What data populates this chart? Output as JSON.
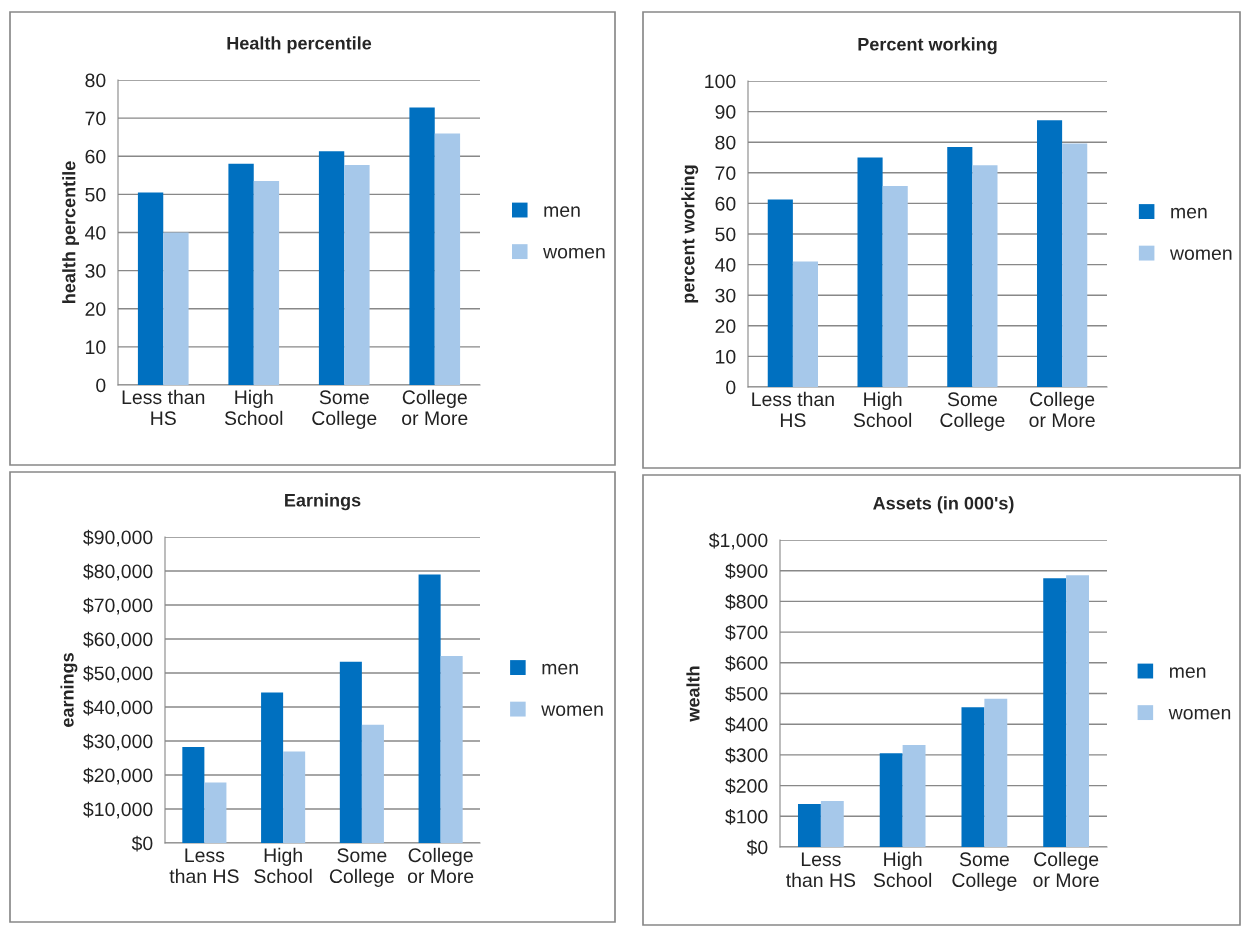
{
  "chart_data": [
    {
      "type": "bar",
      "title": "Health percentile",
      "ylabel": "health percentile",
      "categories": [
        "Less than\nHS",
        "High\nSchool",
        "Some\nCollege",
        "College\nor More"
      ],
      "series": [
        {
          "name": "men",
          "color": "#0070c0",
          "values": [
            50.5,
            58,
            61.3,
            72.8
          ]
        },
        {
          "name": "women",
          "color": "#a6c8ea",
          "values": [
            40,
            53.5,
            57.7,
            66
          ]
        }
      ],
      "ylim": [
        0,
        80
      ],
      "yticks": [
        0,
        10,
        20,
        30,
        40,
        50,
        60,
        70,
        80
      ],
      "grid": "y",
      "legend": "right"
    },
    {
      "type": "bar",
      "title": "Percent working",
      "ylabel": "percent working",
      "categories": [
        "Less than\nHS",
        "High\nSchool",
        "Some\nCollege",
        "College\nor More"
      ],
      "series": [
        {
          "name": "men",
          "color": "#0070c0",
          "values": [
            61.3,
            75,
            78.4,
            87.2
          ]
        },
        {
          "name": "women",
          "color": "#a6c8ea",
          "values": [
            41,
            65.7,
            72.5,
            79.6
          ]
        }
      ],
      "ylim": [
        0,
        100
      ],
      "yticks": [
        0,
        10,
        20,
        30,
        40,
        50,
        60,
        70,
        80,
        90,
        100
      ],
      "grid": "y",
      "legend": "right"
    },
    {
      "type": "bar",
      "title": "Earnings",
      "ylabel": "earnings",
      "categories": [
        "Less\nthan HS",
        "High\nSchool",
        "Some\nCollege",
        "College\nor More"
      ],
      "series": [
        {
          "name": "men",
          "color": "#0070c0",
          "values": [
            28200,
            44300,
            53300,
            79000
          ]
        },
        {
          "name": "women",
          "color": "#a6c8ea",
          "values": [
            17800,
            26900,
            34800,
            55000
          ]
        }
      ],
      "ylim": [
        0,
        90000
      ],
      "yticks": [
        {
          "value": 0,
          "label": "$0"
        },
        {
          "value": 10000,
          "label": "$10,000"
        },
        {
          "value": 20000,
          "label": "$20,000"
        },
        {
          "value": 30000,
          "label": "$30,000"
        },
        {
          "value": 40000,
          "label": "$40,000"
        },
        {
          "value": 50000,
          "label": "$50,000"
        },
        {
          "value": 60000,
          "label": "$60,000"
        },
        {
          "value": 70000,
          "label": "$70,000"
        },
        {
          "value": 80000,
          "label": "$80,000"
        },
        {
          "value": 90000,
          "label": "$90,000"
        }
      ],
      "grid": "y",
      "legend": "right"
    },
    {
      "type": "bar",
      "title": "Assets (in 000's)",
      "ylabel": "wealth",
      "categories": [
        "Less\nthan HS",
        "High\nSchool",
        "Some\nCollege",
        "College\nor More"
      ],
      "series": [
        {
          "name": "men",
          "color": "#0070c0",
          "values": [
            140,
            305,
            455,
            875
          ]
        },
        {
          "name": "women",
          "color": "#a6c8ea",
          "values": [
            150,
            332,
            483,
            885
          ]
        }
      ],
      "ylim": [
        0,
        1000
      ],
      "yticks": [
        {
          "value": 0,
          "label": "$0"
        },
        {
          "value": 100,
          "label": "$100"
        },
        {
          "value": 200,
          "label": "$200"
        },
        {
          "value": 300,
          "label": "$300"
        },
        {
          "value": 400,
          "label": "$400"
        },
        {
          "value": 500,
          "label": "$500"
        },
        {
          "value": 600,
          "label": "$600"
        },
        {
          "value": 700,
          "label": "$700"
        },
        {
          "value": 800,
          "label": "$800"
        },
        {
          "value": 900,
          "label": "$900"
        },
        {
          "value": 1000,
          "label": "$1,000"
        }
      ],
      "grid": "y",
      "legend": "right"
    }
  ]
}
